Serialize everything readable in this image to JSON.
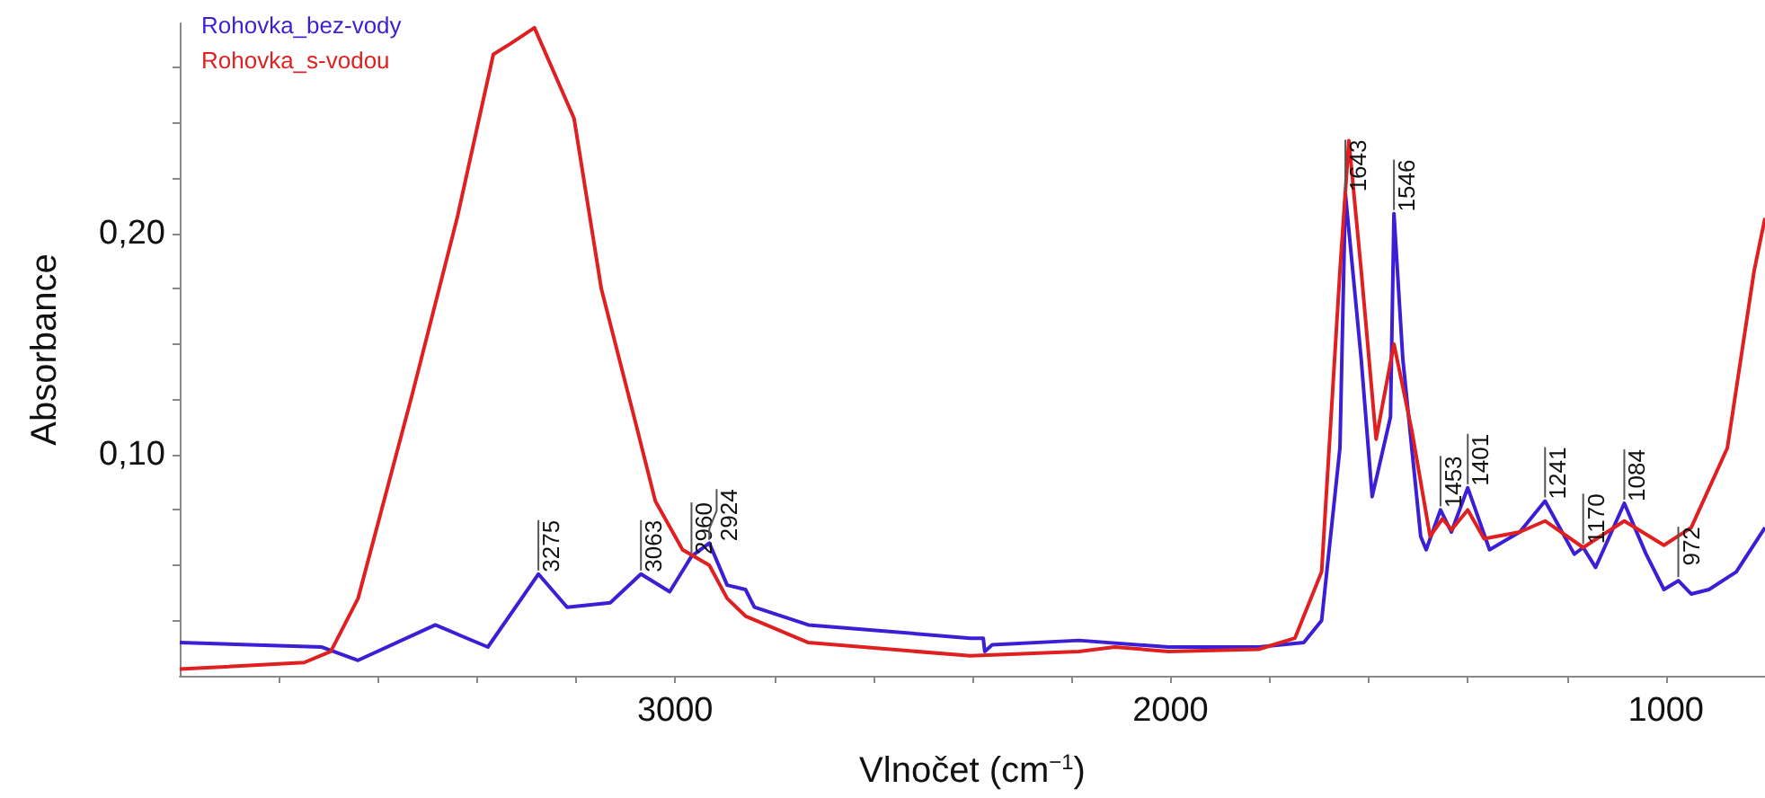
{
  "chart_data": {
    "type": "line",
    "xlabel": "Vlnočet (cm$^{−1}$)",
    "ylabel": "Absorbance",
    "xlim": [
      4000,
      800
    ],
    "ylim": [
      0,
      0.295
    ],
    "xticks": [
      {
        "value": 3800,
        "label": null
      },
      {
        "value": 3600,
        "label": null
      },
      {
        "value": 3400,
        "label": null
      },
      {
        "value": 3200,
        "label": null
      },
      3000,
      {
        "value": 2800,
        "label": null
      },
      {
        "value": 2600,
        "label": null
      },
      {
        "value": 2400,
        "label": null
      },
      {
        "value": 2200,
        "label": null
      },
      2000,
      {
        "value": 1800,
        "label": null
      },
      {
        "value": 1600,
        "label": null
      },
      {
        "value": 1400,
        "label": null
      },
      {
        "value": 1200,
        "label": null
      },
      1000
    ],
    "yticks": [
      {
        "value": 0.025,
        "label": null
      },
      {
        "value": 0.05,
        "label": null
      },
      {
        "value": 0.075,
        "label": null
      },
      {
        "value": 0.1,
        "label": "0,10"
      },
      {
        "value": 0.125,
        "label": null
      },
      {
        "value": 0.15,
        "label": null
      },
      {
        "value": 0.175,
        "label": null
      },
      {
        "value": 0.2,
        "label": "0,20"
      },
      {
        "value": 0.225,
        "label": null
      },
      {
        "value": 0.25,
        "label": null
      },
      {
        "value": 0.275,
        "label": null
      }
    ],
    "grid": false,
    "legend": "top left",
    "marker": "none",
    "line_style": "solid",
    "series": [
      {
        "name": "Rohovka_bez-vody",
        "color": "#3a1fd6",
        "x": [
          4000,
          3713,
          3640,
          3484,
          3378,
          3276,
          3218,
          3131,
          3069,
          3011,
          2967,
          2931,
          2895,
          2858,
          2840,
          2731,
          2404,
          2378,
          2375,
          2360,
          2185,
          2004,
          1822,
          1731,
          1695,
          1658,
          1647,
          1615,
          1593,
          1556,
          1549,
          1531,
          1495,
          1484,
          1455,
          1433,
          1400,
          1356,
          1295,
          1244,
          1185,
          1167,
          1142,
          1084,
          1040,
          1004,
          975,
          949,
          913,
          858,
          800
        ],
        "values": [
          0.015,
          0.013,
          0.007,
          0.023,
          0.013,
          0.046,
          0.031,
          0.033,
          0.046,
          0.038,
          0.054,
          0.06,
          0.041,
          0.039,
          0.031,
          0.023,
          0.017,
          0.017,
          0.011,
          0.014,
          0.016,
          0.013,
          0.013,
          0.015,
          0.025,
          0.103,
          0.218,
          0.143,
          0.081,
          0.117,
          0.209,
          0.143,
          0.063,
          0.057,
          0.075,
          0.065,
          0.085,
          0.057,
          0.065,
          0.079,
          0.055,
          0.058,
          0.049,
          0.078,
          0.055,
          0.039,
          0.043,
          0.037,
          0.039,
          0.047,
          0.067
        ]
      },
      {
        "name": "Rohovka_s-vodou",
        "color": "#e02020",
        "x": [
          4000,
          3749,
          3695,
          3640,
          3531,
          3440,
          3367,
          3331,
          3284,
          3204,
          3149,
          3076,
          3040,
          2985,
          2931,
          2895,
          2858,
          2731,
          2404,
          2185,
          2113,
          2004,
          1822,
          1749,
          1695,
          1658,
          1640,
          1615,
          1585,
          1549,
          1513,
          1476,
          1451,
          1433,
          1400,
          1367,
          1295,
          1244,
          1167,
          1084,
          1004,
          949,
          876,
          822,
          800
        ],
        "values": [
          0.003,
          0.006,
          0.011,
          0.035,
          0.127,
          0.207,
          0.281,
          0.286,
          0.293,
          0.252,
          0.175,
          0.111,
          0.079,
          0.057,
          0.05,
          0.035,
          0.027,
          0.015,
          0.009,
          0.011,
          0.013,
          0.011,
          0.012,
          0.017,
          0.047,
          0.183,
          0.242,
          0.183,
          0.107,
          0.15,
          0.111,
          0.063,
          0.071,
          0.066,
          0.075,
          0.062,
          0.065,
          0.07,
          0.058,
          0.07,
          0.059,
          0.067,
          0.103,
          0.183,
          0.207
        ]
      }
    ],
    "annotations": [
      {
        "text": "3275",
        "x": 3276,
        "y": 0.046
      },
      {
        "text": "3063",
        "x": 3069,
        "y": 0.046
      },
      {
        "text": "2960",
        "x": 2967,
        "y": 0.054
      },
      {
        "text": "2924",
        "x": 2931,
        "y": 0.06
      },
      {
        "text": "1643",
        "x": 1647,
        "y": 0.218
      },
      {
        "text": "1546",
        "x": 1549,
        "y": 0.209
      },
      {
        "text": "1453",
        "x": 1455,
        "y": 0.075
      },
      {
        "text": "1401",
        "x": 1400,
        "y": 0.085
      },
      {
        "text": "1241",
        "x": 1244,
        "y": 0.079
      },
      {
        "text": "1170",
        "x": 1167,
        "y": 0.058
      },
      {
        "text": "1084",
        "x": 1084,
        "y": 0.078
      },
      {
        "text": "972",
        "x": 975,
        "y": 0.043
      }
    ]
  }
}
